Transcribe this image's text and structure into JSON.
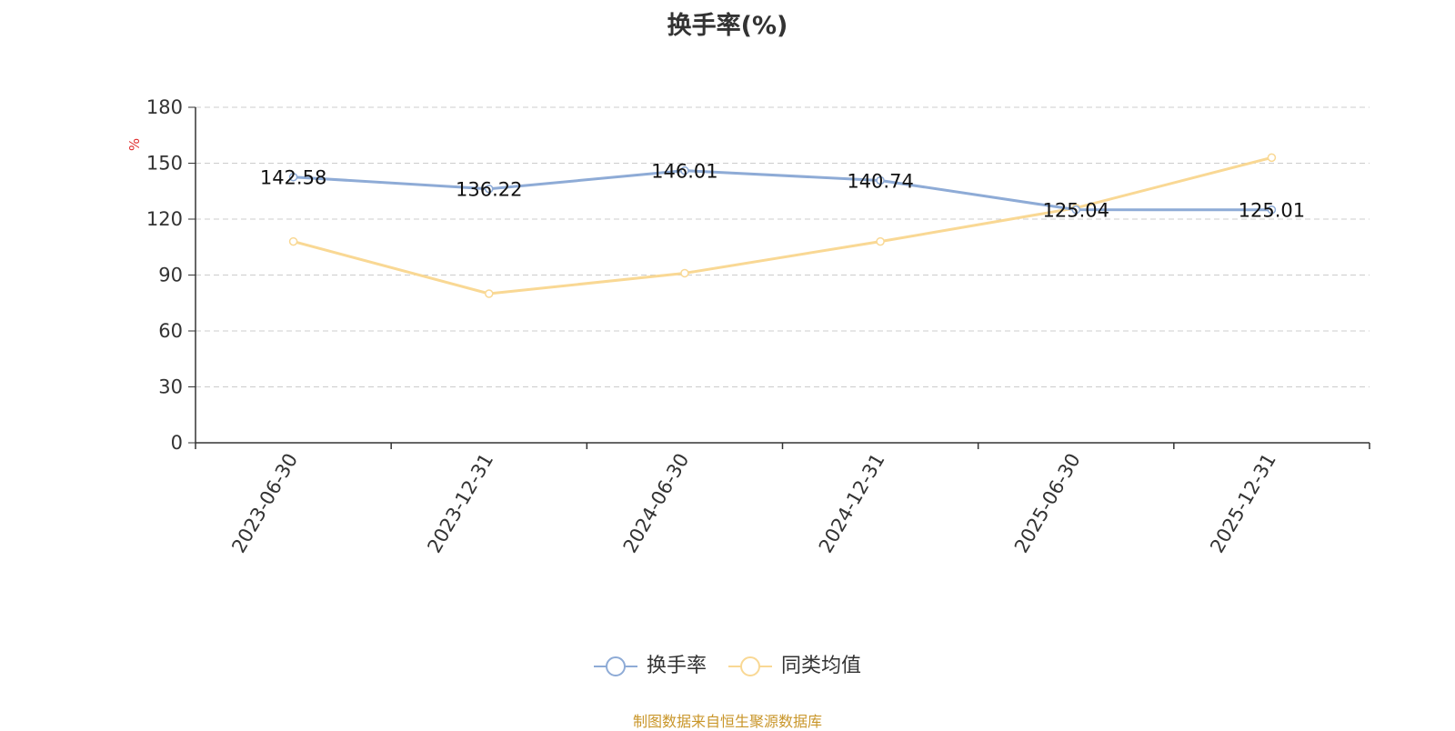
{
  "chart_data": {
    "type": "line",
    "title": "换手率(%)",
    "ylabel": "%",
    "xlabel": "",
    "ylim": [
      0,
      180
    ],
    "yticks": [
      0,
      30,
      60,
      90,
      120,
      150,
      180
    ],
    "grid": true,
    "legend_position": "bottom",
    "categories": [
      "2023-06-30",
      "2023-12-31",
      "2024-06-30",
      "2024-12-31",
      "2025-06-30",
      "2025-12-31"
    ],
    "series": [
      {
        "name": "换手率",
        "color": "#8eabd6",
        "values": [
          142.58,
          136.22,
          146.01,
          140.74,
          125.04,
          125.01
        ],
        "labels": [
          "142.58",
          "136.22",
          "146.01",
          "140.74",
          "125.04",
          "125.01"
        ]
      },
      {
        "name": "同类均值",
        "color": "#f9d894",
        "values": [
          108,
          80,
          91,
          108,
          126,
          153
        ]
      }
    ]
  },
  "source_note": "制图数据来自恒生聚源数据库"
}
